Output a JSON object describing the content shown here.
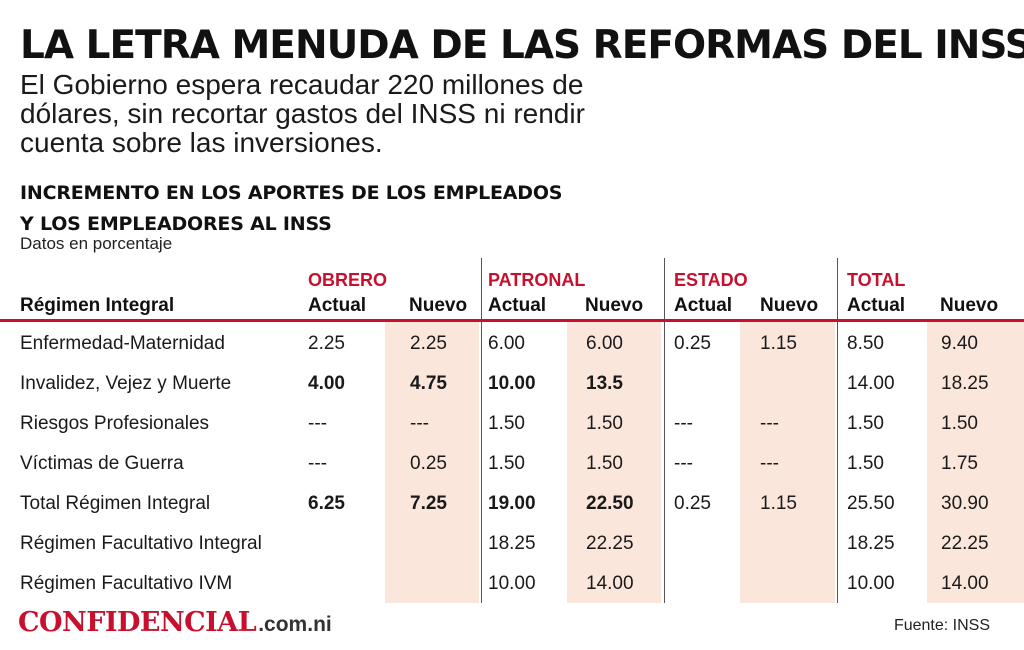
{
  "header": {
    "title": "LA LETRA MENUDA DE LAS REFORMAS DEL INSS",
    "subtitle": "El Gobierno espera recaudar 220 millones de dólares, sin recortar gastos del INSS ni rendir cuenta sobre las inversiones."
  },
  "section": {
    "title_line1": "INCREMENTO EN LOS APORTES DE LOS EMPLEADOS",
    "title_line2": "Y LOS EMPLEADORES AL INSS",
    "units": "Datos en porcentaje"
  },
  "table": {
    "row_header": "Régimen Integral",
    "groups": [
      "OBRERO",
      "PATRONAL",
      "ESTADO",
      "TOTAL"
    ],
    "columns": [
      "Actual",
      "Nuevo",
      "Actual",
      "Nuevo",
      "Actual",
      "Nuevo",
      "Actual",
      "Nuevo"
    ],
    "rows": [
      {
        "label": "Enfermedad-Maternidad",
        "values": [
          "2.25",
          "2.25",
          "6.00",
          "6.00",
          "0.25",
          "1.15",
          "8.50",
          "9.40"
        ],
        "bold": [
          false,
          false,
          false,
          false,
          false,
          false,
          false,
          false
        ]
      },
      {
        "label": "Invalidez, Vejez y Muerte",
        "values": [
          "4.00",
          "4.75",
          "10.00",
          "13.5",
          "",
          "",
          "14.00",
          "18.25"
        ],
        "bold": [
          true,
          true,
          true,
          true,
          false,
          false,
          false,
          false
        ]
      },
      {
        "label": "Riesgos Profesionales",
        "values": [
          "---",
          "---",
          "1.50",
          "1.50",
          "---",
          "---",
          "1.50",
          "1.50"
        ],
        "bold": [
          false,
          false,
          false,
          false,
          false,
          false,
          false,
          false
        ]
      },
      {
        "label": "Víctimas de Guerra",
        "values": [
          "---",
          "0.25",
          "1.50",
          "1.50",
          "---",
          "---",
          "1.50",
          "1.75"
        ],
        "bold": [
          false,
          false,
          false,
          false,
          false,
          false,
          false,
          false
        ]
      },
      {
        "label": "Total Régimen Integral",
        "values": [
          "6.25",
          "7.25",
          "19.00",
          "22.50",
          "0.25",
          "1.15",
          "25.50",
          "30.90"
        ],
        "bold": [
          true,
          true,
          true,
          true,
          false,
          false,
          false,
          false
        ]
      },
      {
        "label": "Régimen Facultativo Integral",
        "values": [
          "",
          "",
          "18.25",
          "22.25",
          "",
          "",
          "18.25",
          "22.25"
        ],
        "bold": [
          false,
          false,
          false,
          false,
          false,
          false,
          false,
          false
        ]
      },
      {
        "label": "Régimen Facultativo IVM",
        "values": [
          "",
          "",
          "10.00",
          "14.00",
          "",
          "",
          "10.00",
          "14.00"
        ],
        "bold": [
          false,
          false,
          false,
          false,
          false,
          false,
          false,
          false
        ]
      }
    ]
  },
  "footer": {
    "logo_word": "CONFIDENCIAL",
    "logo_domain": ".com.ni",
    "source": "Fuente: INSS"
  },
  "colors": {
    "accent_red": "#c8102e",
    "new_column_shade": "#fbe6dc"
  }
}
